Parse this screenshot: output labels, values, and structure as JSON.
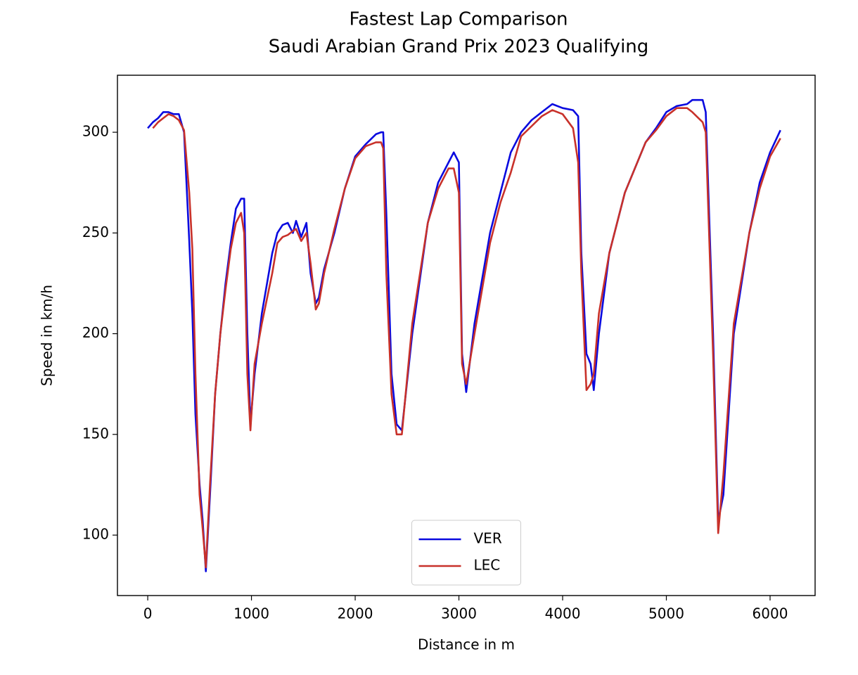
{
  "chart_data": {
    "type": "line",
    "title": "Fastest Lap Comparison",
    "subtitle": "Saudi Arabian Grand Prix 2023 Qualifying",
    "x_label": "Distance in m",
    "y_label": "Speed in km/h",
    "x": [
      0,
      50,
      100,
      150,
      200,
      250,
      300,
      350,
      400,
      430,
      460,
      500,
      530,
      560,
      600,
      650,
      700,
      750,
      800,
      850,
      900,
      930,
      960,
      990,
      1030,
      1100,
      1200,
      1250,
      1300,
      1350,
      1400,
      1430,
      1480,
      1530,
      1570,
      1620,
      1650,
      1700,
      1800,
      1900,
      2000,
      2100,
      2200,
      2250,
      2270,
      2300,
      2350,
      2400,
      2450,
      2550,
      2700,
      2800,
      2900,
      2950,
      3000,
      3030,
      3070,
      3150,
      3300,
      3400,
      3500,
      3600,
      3700,
      3800,
      3900,
      4000,
      4100,
      4150,
      4180,
      4230,
      4270,
      4300,
      4350,
      4450,
      4600,
      4800,
      4900,
      5000,
      5100,
      5200,
      5250,
      5350,
      5380,
      5450,
      5500,
      5550,
      5650,
      5800,
      5900,
      6000,
      6100
    ],
    "series": [
      {
        "name": "VER",
        "color": "#0a0adf",
        "values": [
          302,
          305,
          307,
          310,
          310,
          309,
          309,
          300,
          246,
          210,
          160,
          125,
          107,
          82,
          120,
          170,
          200,
          225,
          245,
          262,
          267,
          267,
          200,
          155,
          180,
          210,
          240,
          250,
          254,
          255,
          250,
          256,
          248,
          255,
          230,
          215,
          218,
          232,
          250,
          272,
          288,
          294,
          299,
          300,
          300,
          260,
          180,
          155,
          152,
          200,
          255,
          275,
          285,
          290,
          285,
          190,
          171,
          205,
          250,
          270,
          290,
          300,
          306,
          310,
          314,
          312,
          311,
          308,
          240,
          190,
          185,
          172,
          200,
          240,
          270,
          295,
          302,
          310,
          313,
          314,
          316,
          316,
          310,
          200,
          107,
          120,
          200,
          250,
          275,
          290,
          301
        ]
      },
      {
        "name": "LEC",
        "color": "#c8312a",
        "values": [
          null,
          302,
          305,
          307,
          309,
          308,
          306,
          301,
          270,
          242,
          180,
          120,
          103,
          84,
          125,
          170,
          200,
          222,
          242,
          255,
          260,
          250,
          180,
          152,
          185,
          205,
          230,
          245,
          248,
          249,
          251,
          252,
          246,
          250,
          235,
          212,
          215,
          230,
          252,
          272,
          287,
          293,
          295,
          295,
          292,
          230,
          170,
          150,
          150,
          205,
          255,
          272,
          282,
          282,
          270,
          185,
          175,
          200,
          245,
          265,
          280,
          298,
          303,
          308,
          311,
          309,
          302,
          285,
          230,
          172,
          175,
          180,
          210,
          240,
          270,
          295,
          301,
          308,
          312,
          312,
          310,
          305,
          300,
          190,
          101,
          130,
          205,
          250,
          272,
          288,
          297
        ]
      }
    ],
    "xlim": [
      -292,
      6434
    ],
    "xticks": [
      0,
      1000,
      2000,
      3000,
      4000,
      5000,
      6000
    ],
    "ylim": [
      70,
      328.3
    ],
    "yticks": [
      100,
      150,
      200,
      250,
      300
    ],
    "grid": false,
    "legend": "lower center"
  }
}
